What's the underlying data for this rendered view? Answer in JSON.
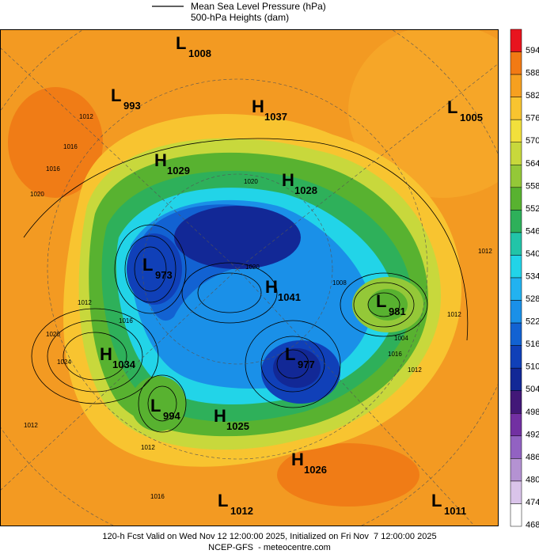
{
  "legend": {
    "items": [
      "Mean Sea Level Pressure (hPa)",
      "500-hPa Heights (dam)"
    ]
  },
  "centers": [
    {
      "type": "L",
      "value": 1008
    },
    {
      "type": "L",
      "value": 993
    },
    {
      "type": "H",
      "value": 1037
    },
    {
      "type": "L",
      "value": 1005
    },
    {
      "type": "H",
      "value": 1029
    },
    {
      "type": "H",
      "value": 1028
    },
    {
      "type": "L",
      "value": 973
    },
    {
      "type": "H",
      "value": 1041
    },
    {
      "type": "L",
      "value": 981
    },
    {
      "type": "H",
      "value": 1034
    },
    {
      "type": "L",
      "value": 977
    },
    {
      "type": "L",
      "value": 994
    },
    {
      "type": "H",
      "value": 1025
    },
    {
      "type": "H",
      "value": 1026
    },
    {
      "type": "L",
      "value": 1012
    },
    {
      "type": "L",
      "value": 1011
    }
  ],
  "isobar_labels": [
    1012,
    1016,
    1016,
    1020,
    1012,
    1020,
    1024,
    1012,
    1016,
    1004,
    1008,
    1016,
    1020,
    1020,
    1012,
    1012,
    1016,
    1012,
    1012
  ],
  "colorbar": [
    {
      "value": 594,
      "color": "#e8141e"
    },
    {
      "value": 588,
      "color": "#f27a14"
    },
    {
      "value": 582,
      "color": "#f6a020"
    },
    {
      "value": 576,
      "color": "#f8c430"
    },
    {
      "value": 570,
      "color": "#f2e03c"
    },
    {
      "value": 564,
      "color": "#c8d83c"
    },
    {
      "value": 558,
      "color": "#94c838"
    },
    {
      "value": 552,
      "color": "#58b230"
    },
    {
      "value": 546,
      "color": "#2eb05a"
    },
    {
      "value": 540,
      "color": "#22c4a8"
    },
    {
      "value": 534,
      "color": "#22d4e8"
    },
    {
      "value": 528,
      "color": "#22b2f0"
    },
    {
      "value": 522,
      "color": "#1a90e8"
    },
    {
      "value": 516,
      "color": "#1262d2"
    },
    {
      "value": 510,
      "color": "#1040b8"
    },
    {
      "value": 504,
      "color": "#122896"
    },
    {
      "value": 498,
      "color": "#421878"
    },
    {
      "value": 492,
      "color": "#7230a2"
    },
    {
      "value": 486,
      "color": "#9262c2"
    },
    {
      "value": 480,
      "color": "#b492d2"
    },
    {
      "value": 474,
      "color": "#dac4ea"
    },
    {
      "value": 468,
      "color": "#ffffff"
    }
  ],
  "footer": {
    "line1": "120-h Fcst Valid on Wed Nov 12 12:00:00 2025, Initialized on Fri Nov  7 12:00:00 2025",
    "line2": "NCEP-GFS  - meteocentre.com"
  }
}
